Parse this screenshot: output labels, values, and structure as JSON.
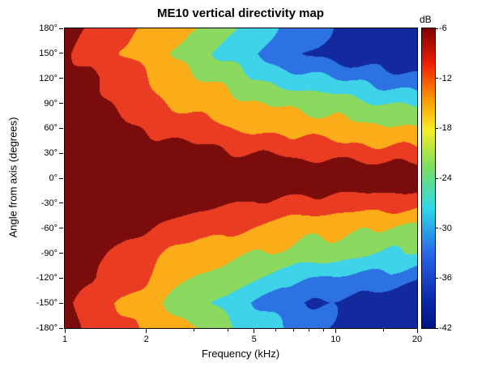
{
  "chart_data": {
    "type": "heatmap",
    "title": "ME10 vertical directivity map",
    "xlabel": "Frequency (kHz)",
    "ylabel": "Angle from axis (degrees)",
    "x_scale": "log",
    "x_range_khz": [
      1,
      20
    ],
    "y_range_deg": [
      -180,
      180
    ],
    "xticks": [
      1,
      2,
      5,
      10,
      20
    ],
    "xtick_labels": [
      "1",
      "2",
      "5",
      "10",
      "20"
    ],
    "xticks_minor": [
      3,
      4,
      6,
      7,
      8,
      9,
      15
    ],
    "yticks": [
      180,
      150,
      120,
      90,
      60,
      30,
      0,
      -30,
      -60,
      -90,
      -120,
      -150,
      -180
    ],
    "ytick_suffix": "°",
    "x_frequencies_khz": [
      1,
      1.25,
      1.6,
      2,
      2.5,
      3.15,
      4,
      5,
      6.3,
      8,
      10,
      12.5,
      16,
      20
    ],
    "y_angles_deg": [
      180,
      150,
      120,
      90,
      60,
      30,
      0,
      -30,
      -60,
      -90,
      -120,
      -150,
      -180
    ],
    "values_db": [
      [
        -5,
        -7,
        -10,
        -12,
        -15,
        -18,
        -22,
        -26,
        -30,
        -33,
        -36,
        -40,
        -37,
        -40
      ],
      [
        -5,
        -8,
        -13,
        -14,
        -19,
        -22,
        -26,
        -30,
        -33,
        -36,
        -38,
        -40,
        -41,
        -41
      ],
      [
        -4,
        -5,
        -8,
        -11,
        -16,
        -18,
        -21,
        -24,
        -27,
        -28,
        -30,
        -31,
        -32,
        -34
      ],
      [
        -3,
        -4,
        -6,
        -9,
        -12,
        -14,
        -16,
        -18,
        -20,
        -21,
        -22,
        -23,
        -24,
        -25
      ],
      [
        -2,
        -3,
        -4,
        -6,
        -8,
        -9,
        -11,
        -13,
        -14,
        -15,
        -16,
        -17,
        -18,
        -19
      ],
      [
        -1,
        -1,
        -2,
        -3,
        -4,
        -5,
        -6,
        -7,
        -7,
        -8,
        -8,
        -8,
        -8,
        -8
      ],
      [
        0,
        0,
        0,
        0,
        -1,
        -1,
        -1,
        -1,
        -2,
        -2,
        -2,
        -2,
        -3,
        -3
      ],
      [
        -1,
        -1,
        -2,
        -3,
        -4,
        -5,
        -6,
        -7,
        -7,
        -8,
        -8,
        -8,
        -8,
        -8
      ],
      [
        -2,
        -3,
        -4,
        -6,
        -8,
        -10,
        -11,
        -13,
        -14,
        -15,
        -16,
        -17,
        -18,
        -18
      ],
      [
        -3,
        -4,
        -6,
        -9,
        -12,
        -15,
        -16,
        -18,
        -20,
        -21,
        -22,
        -23,
        -24,
        -25
      ],
      [
        -4,
        -5,
        -8,
        -12,
        -16,
        -19,
        -21,
        -24,
        -27,
        -29,
        -30,
        -32,
        -32,
        -34
      ],
      [
        -5,
        -8,
        -12,
        -14,
        -19,
        -23,
        -26,
        -30,
        -34,
        -36,
        -38,
        -40,
        -40,
        -41
      ],
      [
        -5,
        -7,
        -10,
        -13,
        -15,
        -18,
        -22,
        -27,
        -30,
        -34,
        -36,
        -39,
        -38,
        -40
      ]
    ],
    "contour_step_db": 6,
    "band_thresholds_db": [
      -6,
      -12,
      -18,
      -24,
      -30,
      -36
    ],
    "band_colors": [
      "#7a0c0c",
      "#e93c22",
      "#fbac19",
      "#8cd95f",
      "#3ed3e8",
      "#2d72e3",
      "#122a9e"
    ],
    "colorbar": {
      "label": "dB",
      "max": -6,
      "min": -42,
      "ticks": [
        -6,
        -12,
        -18,
        -24,
        -30,
        -36,
        -42
      ],
      "gradient_stops": [
        [
          "#7f0000",
          0
        ],
        [
          "#f02000",
          0.12
        ],
        [
          "#ff9c00",
          0.24
        ],
        [
          "#f6ee27",
          0.34
        ],
        [
          "#7ddf5d",
          0.46
        ],
        [
          "#2ed9e9",
          0.6
        ],
        [
          "#2762e8",
          0.76
        ],
        [
          "#0b2aad",
          0.9
        ],
        [
          "#001484",
          1
        ]
      ]
    }
  }
}
